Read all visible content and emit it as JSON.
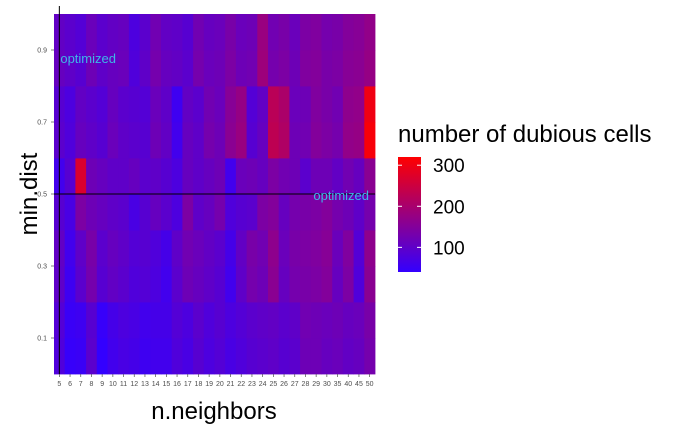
{
  "chart_data": {
    "type": "heatmap",
    "xlabel": "n.neighbors",
    "ylabel": "min.dist",
    "x_categories": [
      "5",
      "6",
      "7",
      "8",
      "9",
      "10",
      "11",
      "12",
      "13",
      "14",
      "15",
      "16",
      "17",
      "18",
      "19",
      "20",
      "21",
      "22",
      "23",
      "24",
      "25",
      "26",
      "27",
      "28",
      "29",
      "30",
      "35",
      "40",
      "45",
      "50"
    ],
    "y_bands": [
      0.0,
      0.1,
      0.2,
      0.3,
      0.4,
      0.5,
      0.6,
      0.7,
      0.8,
      0.9,
      1.0
    ],
    "y_ticks": [
      "0.1",
      "0.3",
      "0.5",
      "0.7",
      "0.9"
    ],
    "grid": false,
    "values": [
      [
        80,
        45,
        50,
        95,
        40,
        60,
        70,
        65,
        55,
        60,
        60,
        80,
        70,
        90,
        75,
        85,
        70,
        80,
        90,
        95,
        100,
        90,
        95,
        120,
        120,
        110,
        115,
        105,
        110,
        130
      ],
      [
        85,
        50,
        55,
        90,
        45,
        65,
        75,
        70,
        60,
        65,
        65,
        85,
        75,
        95,
        80,
        90,
        75,
        85,
        95,
        100,
        105,
        95,
        100,
        125,
        120,
        115,
        120,
        110,
        115,
        135
      ],
      [
        100,
        55,
        95,
        130,
        90,
        105,
        95,
        80,
        85,
        75,
        60,
        95,
        120,
        110,
        100,
        90,
        60,
        100,
        130,
        120,
        160,
        110,
        130,
        135,
        140,
        150,
        110,
        140,
        80,
        160
      ],
      [
        105,
        60,
        100,
        135,
        95,
        110,
        100,
        85,
        90,
        80,
        65,
        100,
        125,
        115,
        105,
        95,
        65,
        105,
        135,
        125,
        165,
        115,
        135,
        140,
        145,
        155,
        115,
        145,
        85,
        165
      ],
      [
        90,
        70,
        140,
        120,
        110,
        100,
        95,
        70,
        90,
        110,
        95,
        75,
        140,
        100,
        110,
        130,
        80,
        90,
        95,
        140,
        150,
        110,
        130,
        135,
        140,
        150,
        130,
        120,
        100,
        130
      ],
      [
        60,
        90,
        270,
        120,
        110,
        100,
        100,
        110,
        95,
        100,
        90,
        75,
        110,
        100,
        110,
        120,
        60,
        115,
        120,
        110,
        140,
        125,
        120,
        95,
        120,
        120,
        105,
        125,
        110,
        160
      ],
      [
        95,
        80,
        110,
        100,
        90,
        115,
        100,
        95,
        90,
        120,
        105,
        60,
        110,
        100,
        130,
        120,
        160,
        180,
        90,
        110,
        230,
        210,
        120,
        125,
        150,
        140,
        130,
        170,
        175,
        310
      ],
      [
        90,
        75,
        105,
        95,
        85,
        110,
        95,
        90,
        85,
        115,
        100,
        55,
        105,
        95,
        125,
        115,
        155,
        175,
        85,
        105,
        225,
        205,
        115,
        120,
        145,
        135,
        125,
        165,
        170,
        300
      ],
      [
        110,
        100,
        90,
        120,
        100,
        110,
        115,
        80,
        100,
        130,
        110,
        105,
        95,
        130,
        115,
        120,
        140,
        120,
        125,
        185,
        130,
        140,
        120,
        145,
        150,
        135,
        140,
        155,
        160,
        175
      ],
      [
        105,
        95,
        85,
        115,
        95,
        105,
        110,
        75,
        95,
        125,
        105,
        100,
        90,
        125,
        110,
        115,
        135,
        115,
        120,
        180,
        125,
        135,
        115,
        140,
        145,
        130,
        135,
        150,
        155,
        170
      ]
    ],
    "legend": {
      "title": "number of dubious cells",
      "ticks": [
        100,
        200,
        300
      ],
      "range": [
        40,
        320
      ],
      "colors": [
        "#3300ff",
        "#ff0000"
      ],
      "placement": "right"
    },
    "annotations": [
      {
        "text": "optimized",
        "orientation": "vertical",
        "at": "5"
      },
      {
        "text": "optimized",
        "orientation": "horizontal",
        "at": 0.5
      }
    ]
  },
  "style": {
    "annotation_color": "#3fb6e6",
    "line_color": "#000000",
    "tick_color": "#4d4d4d"
  }
}
